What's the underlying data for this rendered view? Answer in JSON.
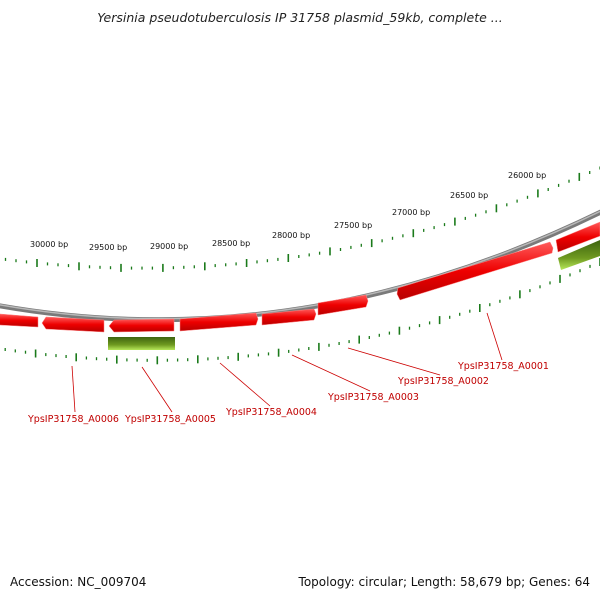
{
  "title": "Yersinia pseudotuberculosis IP 31758 plasmid_59kb, complete ...",
  "footer": {
    "accession": "Accession: NC_009704",
    "topology": "Topology: circular; Length: 58,679 bp; Genes: 64"
  },
  "colors": {
    "backbone": "#808080",
    "gene_forward": "#ee0000",
    "gene_reverse_dark": "#4f7a12",
    "gene_reverse_light": "#a8e040",
    "tick": "#1a7a1a",
    "label": "#cc0000"
  },
  "ticks": [
    {
      "label": "30000 bp",
      "bp": 30000
    },
    {
      "label": "29500 bp",
      "bp": 29500
    },
    {
      "label": "29000 bp",
      "bp": 29000
    },
    {
      "label": "28500 bp",
      "bp": 28500
    },
    {
      "label": "28000 bp",
      "bp": 28000
    },
    {
      "label": "27500 bp",
      "bp": 27500
    },
    {
      "label": "27000 bp",
      "bp": 27000
    },
    {
      "label": "26500 bp",
      "bp": 26500
    },
    {
      "label": "26000 bp",
      "bp": 26000
    }
  ],
  "gene_labels": [
    {
      "name": "YpsIP31758_A0001"
    },
    {
      "name": "YpsIP31758_A0002"
    },
    {
      "name": "YpsIP31758_A0003"
    },
    {
      "name": "YpsIP31758_A0004"
    },
    {
      "name": "YpsIP31758_A0005"
    },
    {
      "name": "YpsIP31758_A0006"
    }
  ]
}
